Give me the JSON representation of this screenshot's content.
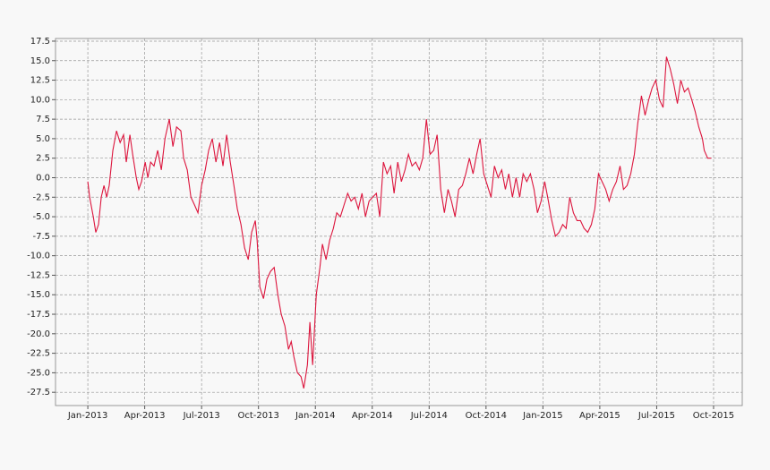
{
  "chart_data": {
    "type": "line",
    "x": [
      2013.0,
      2013.008,
      2013.024,
      2013.035,
      2013.047,
      2013.059,
      2013.071,
      2013.083,
      2013.094,
      2013.11,
      2013.126,
      2013.142,
      2013.157,
      2013.169,
      2013.185,
      2013.197,
      2013.213,
      2013.224,
      2013.236,
      2013.252,
      2013.264,
      2013.276,
      2013.291,
      2013.307,
      2013.323,
      2013.339,
      2013.358,
      2013.374,
      2013.39,
      2013.409,
      2013.421,
      2013.437,
      2013.453,
      2013.469,
      2013.484,
      2013.5,
      2013.516,
      2013.531,
      2013.547,
      2013.563,
      2013.579,
      2013.594,
      2013.61,
      2013.626,
      2013.642,
      2013.657,
      2013.673,
      2013.689,
      2013.705,
      2013.72,
      2013.736,
      2013.744,
      2013.756,
      2013.772,
      2013.787,
      2013.803,
      2013.819,
      2013.835,
      2013.85,
      2013.866,
      2013.882,
      2013.894,
      2013.906,
      2013.921,
      2013.937,
      2013.949,
      2013.965,
      2013.976,
      2013.988,
      2014.004,
      2014.02,
      2014.031,
      2014.047,
      2014.063,
      2014.079,
      2014.094,
      2014.11,
      2014.126,
      2014.142,
      2014.157,
      2014.173,
      2014.189,
      2014.205,
      2014.22,
      2014.236,
      2014.252,
      2014.268,
      2014.283,
      2014.299,
      2014.315,
      2014.331,
      2014.346,
      2014.362,
      2014.378,
      2014.394,
      2014.409,
      2014.425,
      2014.441,
      2014.457,
      2014.472,
      2014.488,
      2014.504,
      2014.52,
      2014.535,
      2014.551,
      2014.567,
      2014.583,
      2014.598,
      2014.614,
      2014.63,
      2014.646,
      2014.661,
      2014.677,
      2014.693,
      2014.709,
      2014.724,
      2014.74,
      2014.756,
      2014.772,
      2014.787,
      2014.803,
      2014.819,
      2014.835,
      2014.85,
      2014.866,
      2014.882,
      2014.898,
      2014.913,
      2014.929,
      2014.945,
      2014.961,
      2014.976,
      2014.992,
      2015.008,
      2015.024,
      2015.039,
      2015.055,
      2015.071,
      2015.087,
      2015.102,
      2015.118,
      2015.134,
      2015.15,
      2015.165,
      2015.181,
      2015.197,
      2015.213,
      2015.228,
      2015.244,
      2015.26,
      2015.276,
      2015.291,
      2015.307,
      2015.323,
      2015.339,
      2015.354,
      2015.37,
      2015.386,
      2015.402,
      2015.417,
      2015.433,
      2015.449,
      2015.465,
      2015.48,
      2015.496,
      2015.512,
      2015.528,
      2015.543,
      2015.559,
      2015.575,
      2015.591,
      2015.606,
      2015.622,
      2015.638,
      2015.654,
      2015.669,
      2015.685,
      2015.701,
      2015.709,
      2015.724,
      2015.74
    ],
    "series": [
      {
        "color": "#dc143c",
        "values": [
          -0.5,
          -2.5,
          -5,
          -7,
          -6,
          -2.5,
          -1,
          -2.5,
          -1,
          3.5,
          6,
          4.5,
          5.5,
          2,
          5.5,
          3,
          0,
          -1.5,
          -0.5,
          2,
          0,
          2,
          1.5,
          3.5,
          1,
          5,
          7.5,
          4,
          6.5,
          6,
          2.5,
          1,
          -2.5,
          -3.5,
          -4.5,
          -1,
          1,
          3.5,
          5,
          2,
          4.5,
          1.5,
          5.5,
          2,
          -1,
          -4,
          -6,
          -9,
          -10.5,
          -7,
          -5.5,
          -8,
          -14,
          -15.5,
          -13,
          -12,
          -11.5,
          -15,
          -17.5,
          -19,
          -22,
          -21,
          -23,
          -25,
          -25.5,
          -27,
          -24,
          -18.5,
          -24,
          -15,
          -11.5,
          -8.5,
          -10.5,
          -8,
          -6.5,
          -4.5,
          -5,
          -3.5,
          -2,
          -3,
          -2.5,
          -4,
          -2,
          -5,
          -3,
          -2.5,
          -2,
          -5,
          2,
          0.5,
          1.5,
          -2,
          2,
          -0.5,
          1,
          3,
          1.5,
          2,
          1,
          2.5,
          7.5,
          3,
          3.5,
          5.5,
          -1.5,
          -4.5,
          -1.5,
          -3,
          -5,
          -1.5,
          -1,
          0.5,
          2.5,
          0.5,
          3,
          5,
          0.5,
          -1,
          -2.5,
          1.5,
          0,
          1,
          -1.5,
          0.5,
          -2.5,
          0,
          -2.5,
          0.5,
          -0.5,
          0.5,
          -1.5,
          -4.5,
          -3,
          -0.5,
          -3,
          -5.5,
          -7.5,
          -7,
          -6,
          -6.5,
          -2.5,
          -4.5,
          -5.5,
          -5.5,
          -6.5,
          -7,
          -6,
          -4,
          0.5,
          -0.5,
          -1.5,
          -3,
          -1.5,
          -0.5,
          1.5,
          -1.5,
          -1,
          0.5,
          3,
          7,
          10.5,
          8,
          10,
          11.5,
          12.5,
          10,
          9,
          15.5,
          14,
          12,
          9.5,
          12.5,
          11,
          11.5,
          10,
          8.5,
          6.5,
          5,
          3.5,
          2.5,
          2.5
        ]
      }
    ],
    "xlim": [
      2012.858,
      2015.876
    ],
    "xticks": [
      {
        "value": 2013,
        "label": "Jan-2013"
      },
      {
        "value": 2013.25,
        "label": "Apr-2013"
      },
      {
        "value": 2013.5,
        "label": "Jul-2013"
      },
      {
        "value": 2013.75,
        "label": "Oct-2013"
      },
      {
        "value": 2014,
        "label": "Jan-2014"
      },
      {
        "value": 2014.25,
        "label": "Apr-2014"
      },
      {
        "value": 2014.5,
        "label": "Jul-2014"
      },
      {
        "value": 2014.75,
        "label": "Oct-2014"
      },
      {
        "value": 2015,
        "label": "Jan-2015"
      },
      {
        "value": 2015.25,
        "label": "Apr-2015"
      },
      {
        "value": 2015.5,
        "label": "Jul-2015"
      },
      {
        "value": 2015.75,
        "label": "Oct-2015"
      }
    ],
    "ylim": [
      -29.2,
      17.84
    ],
    "yticks": [
      17.5,
      {
        "value": 15,
        "label": "15.0"
      },
      12.5,
      {
        "value": 10,
        "label": "10.0"
      },
      7.5,
      {
        "value": 5,
        "label": "5.0"
      },
      2.5,
      {
        "value": 0,
        "label": "0.0"
      },
      -2.5,
      {
        "value": -5,
        "label": "-5.0"
      },
      -7.5,
      {
        "value": -10,
        "label": "-10.0"
      },
      -12.5,
      {
        "value": -15,
        "label": "-15.0"
      },
      -17.5,
      {
        "value": -20,
        "label": "-20.0"
      },
      -22.5,
      {
        "value": -25,
        "label": "-25.0"
      },
      -27.5
    ],
    "grid": true
  }
}
